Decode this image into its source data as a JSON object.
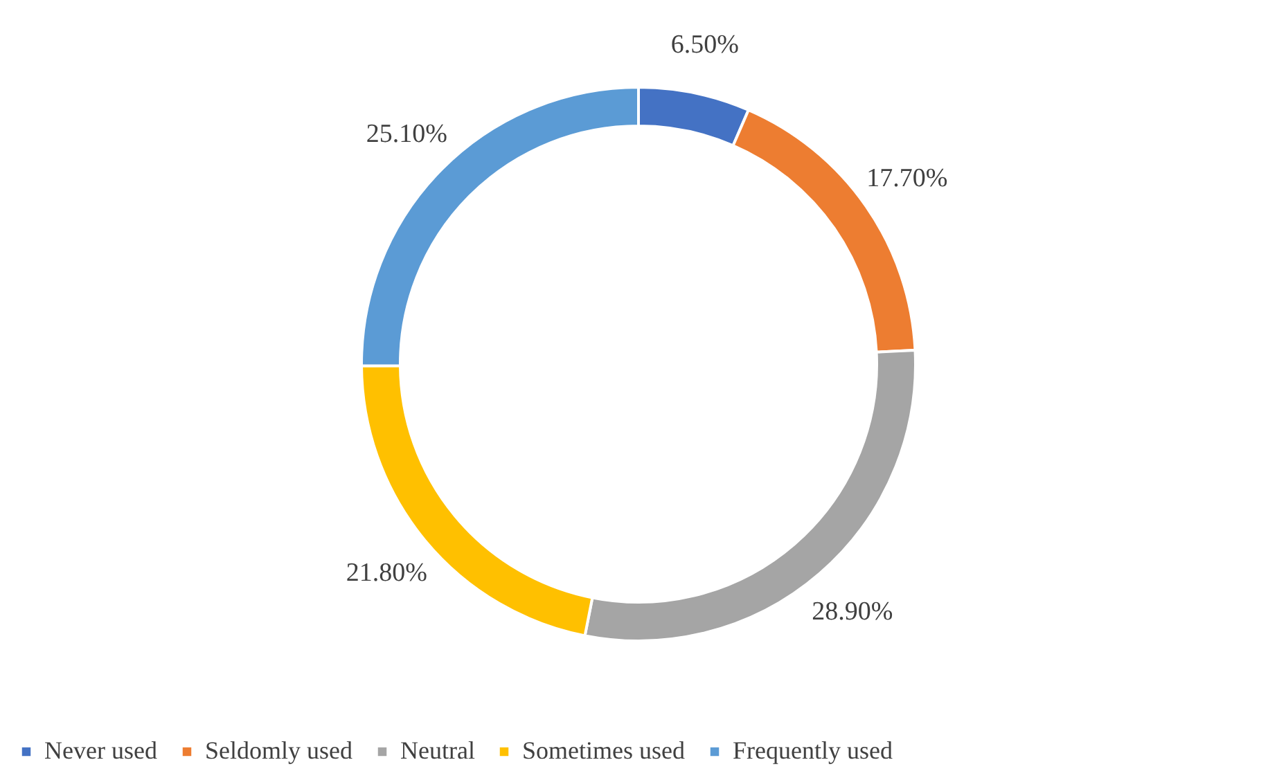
{
  "chart_data": {
    "type": "donut",
    "categories": [
      "Never used",
      "Seldomly used",
      "Neutral",
      "Sometimes used",
      "Frequently used"
    ],
    "values": [
      6.5,
      17.7,
      28.9,
      21.8,
      25.1
    ],
    "colors": [
      "#4472c4",
      "#ed7d31",
      "#a5a5a5",
      "#ffc000",
      "#5b9bd5"
    ],
    "value_labels": [
      "6.50%",
      "17.70%",
      "28.90%",
      "21.80%",
      "25.10%"
    ],
    "legend": "bottom"
  }
}
